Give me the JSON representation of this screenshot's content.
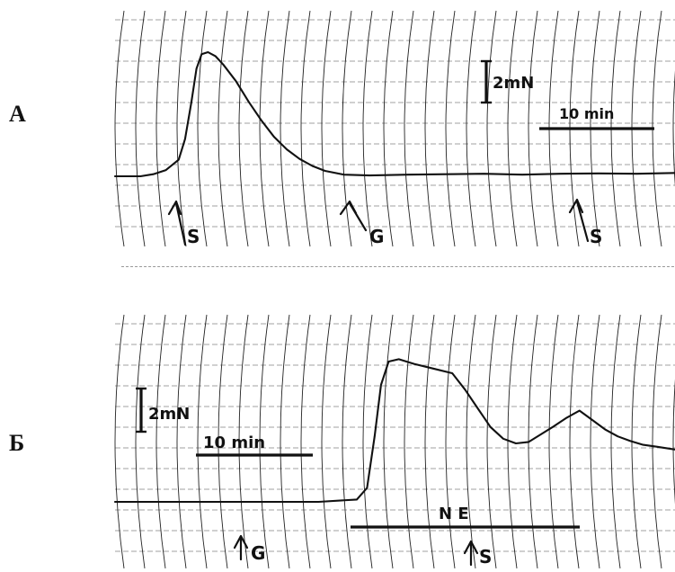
{
  "chart_data": [
    {
      "type": "line",
      "panel_label": "А",
      "title": "",
      "xlabel": "",
      "ylabel": "",
      "scale_bar_force": "2mN",
      "scale_bar_time": "10 min",
      "x_unit": "min",
      "y_unit": "mN",
      "xlim": [
        0,
        44
      ],
      "ylim": [
        -0.2,
        3.2
      ],
      "series": [
        {
          "x": [
            0,
            1,
            2,
            3,
            4,
            5,
            5.5,
            6,
            6.4,
            6.8,
            7.3,
            7.9,
            8.5,
            9.5,
            10.5,
            11.5,
            12.5,
            13.5,
            14.5,
            15.5,
            16.5,
            18,
            20,
            23,
            26,
            29,
            32,
            35,
            38,
            41,
            44
          ],
          "y": [
            0,
            0,
            0,
            0.05,
            0.15,
            0.4,
            0.9,
            1.8,
            2.6,
            2.95,
            3.0,
            2.9,
            2.7,
            2.3,
            1.8,
            1.35,
            0.95,
            0.65,
            0.42,
            0.25,
            0.13,
            0.04,
            0.02,
            0.04,
            0.05,
            0.06,
            0.04,
            0.06,
            0.07,
            0.06,
            0.08
          ]
        }
      ],
      "events": [
        {
          "label": "S",
          "x": 3.8
        },
        {
          "label": "G",
          "x": 14.8
        },
        {
          "label": "S",
          "x": 29.6
        }
      ]
    },
    {
      "type": "line",
      "panel_label": "Б",
      "title": "",
      "xlabel": "",
      "ylabel": "",
      "scale_bar_force": "2mN",
      "scale_bar_time": "10 min",
      "x_unit": "min",
      "y_unit": "mN",
      "xlim": [
        0,
        44
      ],
      "ylim": [
        -0.2,
        3.2
      ],
      "series": [
        {
          "x": [
            0,
            4,
            8,
            12,
            16,
            19,
            19.8,
            20.4,
            20.9,
            21.5,
            22.3,
            23.5,
            25,
            26.5,
            27.5,
            28.5,
            29.5,
            30.5,
            31.5,
            32.5,
            33.5,
            34.5,
            35.5,
            36.5,
            37.5,
            38.5,
            39.5,
            40.5,
            41.5,
            42.5,
            44
          ],
          "y": [
            0,
            0,
            0,
            0,
            0,
            0.05,
            0.3,
            1.4,
            2.5,
            3.0,
            3.05,
            2.95,
            2.85,
            2.75,
            2.4,
            2.0,
            1.6,
            1.35,
            1.25,
            1.28,
            1.45,
            1.62,
            1.8,
            1.95,
            1.75,
            1.55,
            1.4,
            1.3,
            1.22,
            1.18,
            1.12
          ]
        }
      ],
      "events": [
        {
          "label": "G",
          "x": 8.1
        }
      ],
      "interval_bars": [
        {
          "label": "N E",
          "start": 15.8,
          "end": 31.2
        }
      ],
      "note": "S arrow in panel Б sits inside the N E application interval"
    }
  ],
  "labels": {
    "panel_a": "А",
    "panel_b": "Б",
    "a_force": "2mN",
    "a_time": "10 min",
    "a_event_1": "S",
    "a_event_2": "G",
    "a_event_3": "S",
    "b_force": "2mN",
    "b_time": "10 min",
    "b_event_1": "G",
    "b_event_2": "S",
    "b_bar": "N E"
  }
}
